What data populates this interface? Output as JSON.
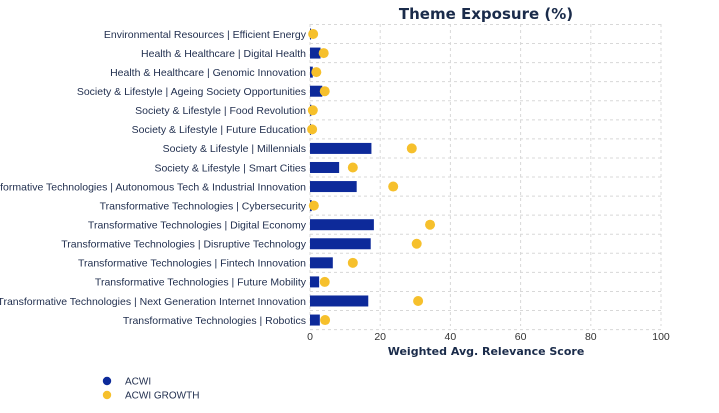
{
  "chart_data": {
    "type": "bar",
    "title": "Theme Exposure (%)",
    "xlabel": "Weighted Avg. Relevance Score",
    "ylabel": "",
    "xlim": [
      0,
      100
    ],
    "xticks": [
      0,
      20,
      40,
      60,
      80,
      100
    ],
    "orientation": "horizontal",
    "grid": true,
    "legend_position": "bottom-left",
    "categories": [
      "Environmental Resources | Efficient Energy",
      "Health & Healthcare | Digital Health",
      "Health & Healthcare | Genomic Innovation",
      "Society & Lifestyle | Ageing Society Opportunities",
      "Society & Lifestyle | Food Revolution",
      "Society & Lifestyle | Future Education",
      "Society & Lifestyle | Millennials",
      "Society & Lifestyle | Smart Cities",
      "Transformative Technologies | Autonomous Tech & Industrial Innovation",
      "Transformative Technologies | Cybersecurity",
      "Transformative Technologies | Digital Economy",
      "Transformative Technologies | Disruptive Technology",
      "Transformative Technologies | Fintech Innovation",
      "Transformative Technologies | Future Mobility",
      "Transformative Technologies | Next Generation Internet Innovation",
      "Transformative Technologies | Robotics"
    ],
    "series": [
      {
        "name": "ACWI",
        "mark": "bar",
        "color": "#0d2a9a",
        "values": [
          0.3,
          3.0,
          0.8,
          3.5,
          0.4,
          0.3,
          17.5,
          8.3,
          13.3,
          0.5,
          18.2,
          17.3,
          6.5,
          2.6,
          16.6,
          2.8
        ]
      },
      {
        "name": "ACWI GROWTH",
        "mark": "dot",
        "color": "#f6c02c",
        "values": [
          0.9,
          3.9,
          1.8,
          4.2,
          0.8,
          0.6,
          29.0,
          12.2,
          23.7,
          1.1,
          34.2,
          30.4,
          12.2,
          4.2,
          30.8,
          4.3
        ]
      }
    ]
  }
}
